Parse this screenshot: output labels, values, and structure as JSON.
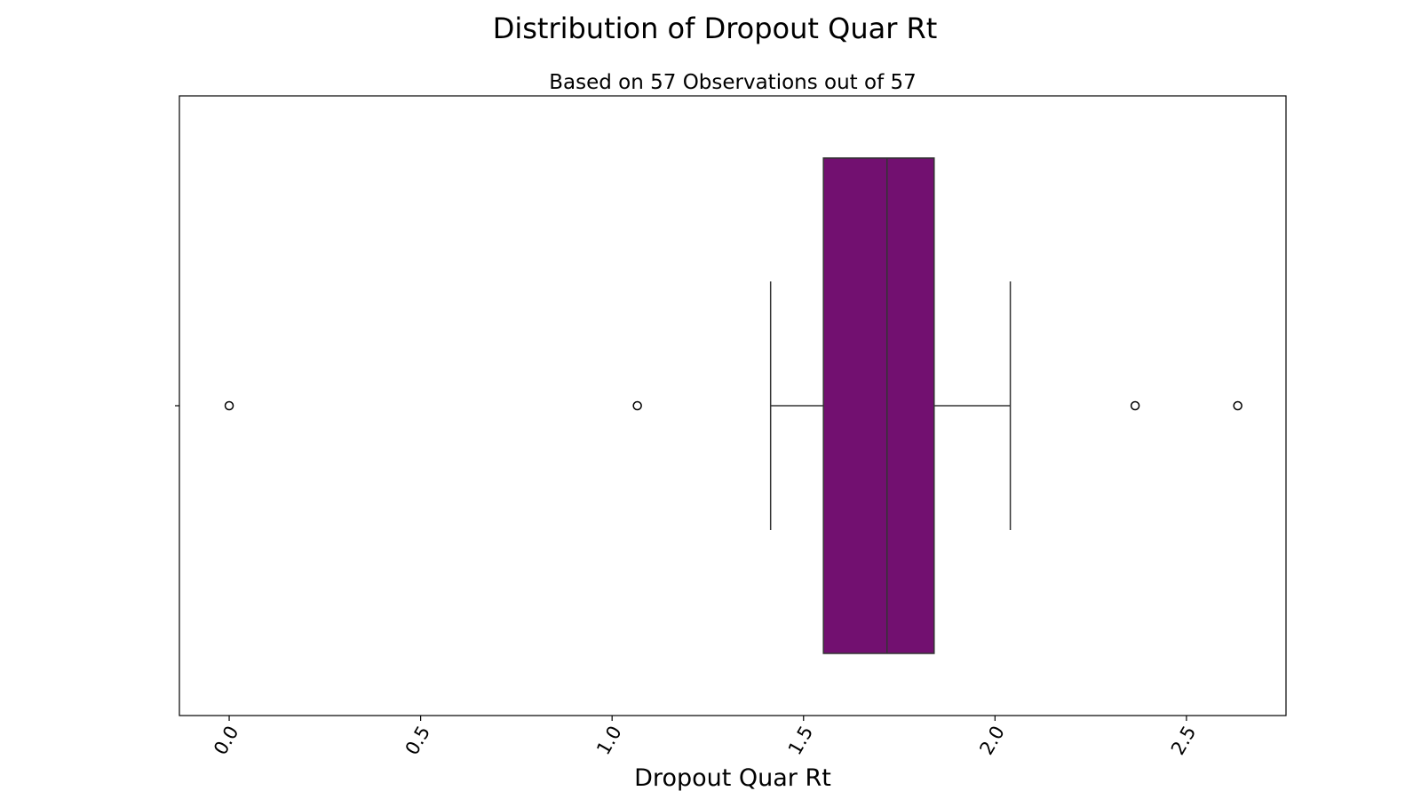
{
  "chart_data": {
    "type": "box",
    "title": "Distribution of Dropout Quar Rt",
    "subtitle": "Based on 57 Observations out of 57",
    "xlabel": "Dropout Quar Rt",
    "ylabel": "",
    "xlim": [
      -0.13,
      2.76
    ],
    "xticks": [
      0.0,
      0.5,
      1.0,
      1.5,
      2.0,
      2.5
    ],
    "xtick_labels": [
      "0.0",
      "0.5",
      "1.0",
      "1.5",
      "2.0",
      "2.5"
    ],
    "tick_rotation_deg": -60,
    "grid": false,
    "box": {
      "whisker_low": 1.414,
      "q1": 1.552,
      "median": 1.718,
      "q3": 1.841,
      "whisker_high": 2.04
    },
    "outliers": [
      0.0,
      1.066,
      2.366,
      2.634
    ],
    "colors": {
      "box_fill": "#721070",
      "edge": "#333333",
      "axes": "#000000",
      "background": "#ffffff"
    }
  }
}
